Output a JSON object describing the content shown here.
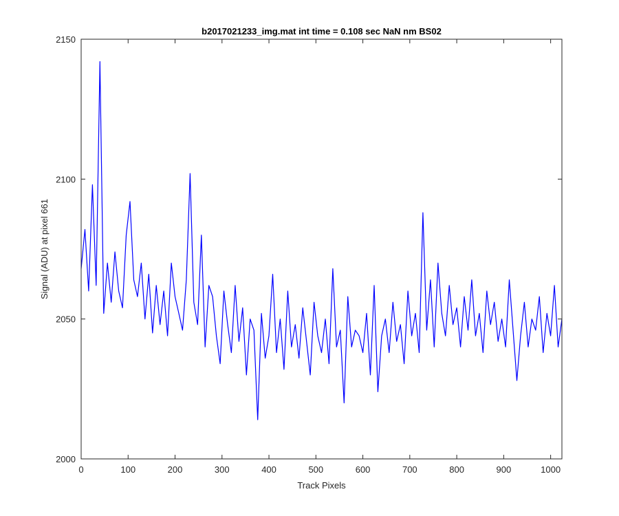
{
  "chart_data": {
    "type": "line",
    "title": "b2017021233_img.mat int time = 0.108 sec  NaN nm BS02",
    "xlabel": "Track Pixels",
    "ylabel": "Signal (ADU) at pixel 661",
    "xlim": [
      0,
      1024
    ],
    "ylim": [
      2000,
      2150
    ],
    "xticks": [
      0,
      100,
      200,
      300,
      400,
      500,
      600,
      700,
      800,
      900,
      1000
    ],
    "yticks": [
      2000,
      2050,
      2100,
      2150
    ],
    "grid": false,
    "legend": "none",
    "series": [
      {
        "color": "#0000ff",
        "x": [
          0,
          8,
          16,
          24,
          32,
          40,
          48,
          56,
          64,
          72,
          80,
          88,
          96,
          104,
          112,
          120,
          128,
          136,
          144,
          152,
          160,
          168,
          176,
          184,
          192,
          200,
          208,
          216,
          224,
          232,
          240,
          248,
          256,
          264,
          272,
          280,
          288,
          296,
          304,
          312,
          320,
          328,
          336,
          344,
          352,
          360,
          368,
          376,
          384,
          392,
          400,
          408,
          416,
          424,
          432,
          440,
          448,
          456,
          464,
          472,
          480,
          488,
          496,
          504,
          512,
          520,
          528,
          536,
          544,
          552,
          560,
          568,
          576,
          584,
          592,
          600,
          608,
          616,
          624,
          632,
          640,
          648,
          656,
          664,
          672,
          680,
          688,
          696,
          704,
          712,
          720,
          728,
          736,
          744,
          752,
          760,
          768,
          776,
          784,
          792,
          800,
          808,
          816,
          824,
          832,
          840,
          848,
          856,
          864,
          872,
          880,
          888,
          896,
          904,
          912,
          920,
          928,
          936,
          944,
          952,
          960,
          968,
          976,
          984,
          992,
          1000,
          1008,
          1016,
          1024
        ],
        "y": [
          2068,
          2082,
          2060,
          2098,
          2062,
          2142,
          2052,
          2070,
          2056,
          2074,
          2060,
          2054,
          2080,
          2092,
          2064,
          2058,
          2070,
          2050,
          2066,
          2045,
          2062,
          2048,
          2060,
          2044,
          2070,
          2058,
          2052,
          2046,
          2064,
          2102,
          2056,
          2048,
          2080,
          2040,
          2062,
          2058,
          2044,
          2034,
          2060,
          2048,
          2038,
          2062,
          2042,
          2054,
          2030,
          2050,
          2046,
          2014,
          2052,
          2036,
          2044,
          2066,
          2038,
          2050,
          2032,
          2060,
          2040,
          2048,
          2036,
          2054,
          2042,
          2030,
          2056,
          2044,
          2038,
          2050,
          2034,
          2068,
          2040,
          2046,
          2020,
          2058,
          2040,
          2046,
          2044,
          2038,
          2052,
          2030,
          2062,
          2024,
          2044,
          2050,
          2038,
          2056,
          2042,
          2048,
          2034,
          2060,
          2044,
          2052,
          2038,
          2088,
          2046,
          2064,
          2040,
          2070,
          2052,
          2044,
          2062,
          2048,
          2054,
          2040,
          2058,
          2046,
          2064,
          2044,
          2052,
          2038,
          2060,
          2048,
          2056,
          2042,
          2050,
          2040,
          2064,
          2046,
          2028,
          2044,
          2056,
          2040,
          2050,
          2046,
          2058,
          2038,
          2052,
          2044,
          2062,
          2040,
          2050
        ]
      }
    ]
  }
}
